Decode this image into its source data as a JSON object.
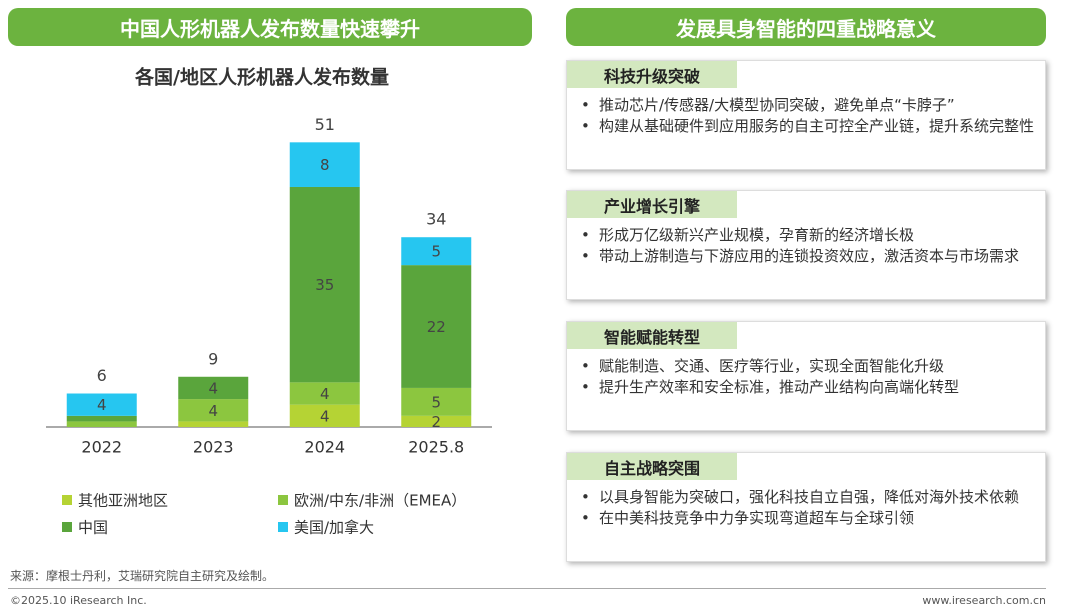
{
  "header_left": "中国人形机器人发布数量快速攀升",
  "header_right": "发展具身智能的四重战略意义",
  "chart_data": {
    "type": "stacked_bar",
    "title": "各国/地区人形机器人发布数量",
    "categories": [
      "2022",
      "2023",
      "2024",
      "2025.8"
    ],
    "series": [
      {
        "name": "其他亚洲地区",
        "color": "#b5d334",
        "values": [
          0,
          1,
          4,
          2
        ]
      },
      {
        "name": "欧洲/中东/非洲（EMEA）",
        "color": "#8cc63f",
        "values": [
          1,
          4,
          4,
          5
        ]
      },
      {
        "name": "中国",
        "color": "#5aa53c",
        "values": [
          1,
          4,
          35,
          22
        ]
      },
      {
        "name": "美国/加拿大",
        "color": "#26c6f0",
        "values": [
          4,
          0,
          8,
          5
        ]
      }
    ],
    "totals": [
      6,
      9,
      51,
      34
    ],
    "ylim": [
      0,
      55
    ]
  },
  "panels": [
    {
      "title": "科技升级突破",
      "bullets": [
        "推动芯片/传感器/大模型协同突破，避免单点“卡脖子”",
        "构建从基础硬件到应用服务的自主可控全产业链，提升系统完整性"
      ]
    },
    {
      "title": "产业增长引擎",
      "bullets": [
        "形成万亿级新兴产业规模，孕育新的经济增长极",
        "带动上游制造与下游应用的连锁投资效应，激活资本与市场需求"
      ]
    },
    {
      "title": "智能赋能转型",
      "bullets": [
        "赋能制造、交通、医疗等行业，实现全面智能化升级",
        "提升生产效率和安全标准，推动产业结构向高端化转型"
      ]
    },
    {
      "title": "自主战略突围",
      "bullets": [
        "以具身智能为突破口，强化科技自立自强，降低对海外技术依赖",
        "在中美科技竞争中力争实现弯道超车与全球引领"
      ]
    }
  ],
  "source": "来源：摩根士丹利，艾瑞研究院自主研究及绘制。",
  "copyright": "©2025.10 iResearch Inc.",
  "website": "www.iresearch.com.cn"
}
